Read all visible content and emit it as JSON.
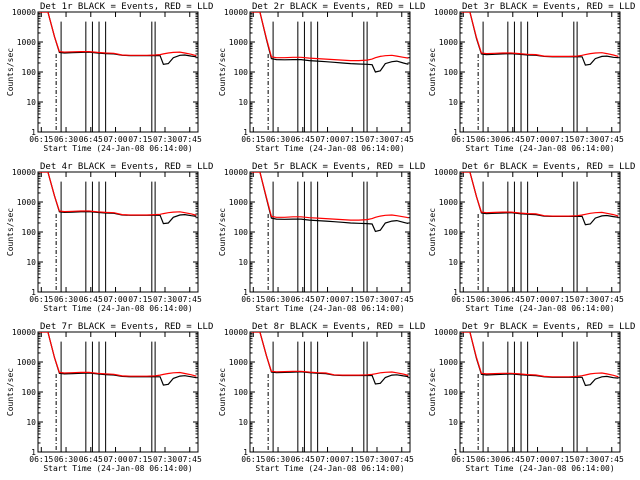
{
  "figure": {
    "series_legend": {
      "black": "BLACK = Events",
      "red": "RED = LLD"
    },
    "xlabel": "Start Time (24-Jan-08 06:14:00)",
    "ylabel": "Counts/sec",
    "xticks": [
      "06:15",
      "06:30",
      "06:45",
      "07:00",
      "07:15",
      "07:30",
      "07:45"
    ],
    "yticks": [
      "1",
      "10",
      "100",
      "1000",
      "10000"
    ],
    "colors": {
      "events": "#000000",
      "lld": "#ff0000",
      "axes": "#000000",
      "background": "#ffffff"
    }
  },
  "chart_data": [
    {
      "type": "line",
      "title": "Det 1r BLACK = Events, RED = LLD",
      "xlabel": "Start Time (24-Jan-08 06:14:00)",
      "ylabel": "Counts/sec",
      "xlim": [
        -1,
        96
      ],
      "ylim": [
        1,
        10000
      ],
      "yscale": "log",
      "x": [
        0,
        5,
        9,
        12,
        15,
        20,
        25,
        30,
        35,
        40,
        45,
        50,
        55,
        60,
        65,
        70,
        73,
        75,
        78,
        81,
        85,
        88,
        92,
        95
      ],
      "series": [
        {
          "name": "Events",
          "values": [
            10000,
            10000,
            1500,
            450,
            430,
            440,
            450,
            460,
            430,
            410,
            400,
            360,
            350,
            350,
            350,
            350,
            350,
            180,
            190,
            300,
            360,
            370,
            340,
            320
          ]
        },
        {
          "name": "LLD",
          "values": [
            10000,
            10000,
            1500,
            480,
            460,
            470,
            480,
            480,
            450,
            430,
            420,
            370,
            360,
            360,
            360,
            370,
            380,
            400,
            430,
            450,
            460,
            430,
            390,
            350
          ]
        }
      ],
      "vlines": [
        13,
        28,
        32,
        36,
        40,
        68,
        70
      ],
      "dashed_vline": 10
    },
    {
      "type": "line",
      "title": "Det 2r BLACK = Events, RED = LLD",
      "xlabel": "Start Time (24-Jan-08 06:14:00)",
      "ylabel": "Counts/sec",
      "xlim": [
        -1,
        96
      ],
      "ylim": [
        1,
        10000
      ],
      "yscale": "log",
      "x": [
        0,
        5,
        9,
        12,
        15,
        20,
        25,
        30,
        35,
        40,
        45,
        50,
        55,
        60,
        65,
        70,
        73,
        75,
        78,
        81,
        85,
        88,
        92,
        95
      ],
      "series": [
        {
          "name": "Events",
          "values": [
            10000,
            10000,
            1200,
            280,
            260,
            255,
            260,
            260,
            240,
            230,
            220,
            210,
            200,
            190,
            185,
            180,
            175,
            100,
            110,
            190,
            220,
            230,
            200,
            180
          ]
        },
        {
          "name": "LLD",
          "values": [
            10000,
            10000,
            1300,
            320,
            300,
            300,
            310,
            310,
            290,
            280,
            270,
            260,
            250,
            240,
            240,
            250,
            270,
            300,
            330,
            350,
            360,
            340,
            310,
            290
          ]
        }
      ],
      "vlines": [
        13,
        28,
        32,
        36,
        40,
        68,
        70
      ],
      "dashed_vline": 10
    },
    {
      "type": "line",
      "title": "Det 3r BLACK = Events, RED = LLD",
      "xlabel": "Start Time (24-Jan-08 06:14:00)",
      "ylabel": "Counts/sec",
      "xlim": [
        -1,
        96
      ],
      "ylim": [
        1,
        10000
      ],
      "yscale": "log",
      "x": [
        0,
        5,
        9,
        12,
        15,
        20,
        25,
        30,
        35,
        40,
        45,
        50,
        55,
        60,
        65,
        70,
        73,
        75,
        78,
        81,
        85,
        88,
        92,
        95
      ],
      "series": [
        {
          "name": "Events",
          "values": [
            10000,
            10000,
            1300,
            400,
            380,
            390,
            400,
            410,
            390,
            370,
            360,
            330,
            320,
            320,
            320,
            320,
            320,
            170,
            180,
            280,
            330,
            340,
            310,
            300
          ]
        },
        {
          "name": "LLD",
          "values": [
            10000,
            10000,
            1400,
            430,
            410,
            420,
            430,
            430,
            410,
            390,
            380,
            340,
            330,
            330,
            330,
            340,
            360,
            380,
            410,
            430,
            440,
            410,
            370,
            330
          ]
        }
      ],
      "vlines": [
        13,
        28,
        32,
        36,
        40,
        68,
        70
      ],
      "dashed_vline": 10
    },
    {
      "type": "line",
      "title": "Det 4r BLACK = Events, RED = LLD",
      "xlabel": "Start Time (24-Jan-08 06:14:00)",
      "ylabel": "Counts/sec",
      "xlim": [
        -1,
        96
      ],
      "ylim": [
        1,
        10000
      ],
      "yscale": "log",
      "x": [
        0,
        5,
        9,
        12,
        15,
        20,
        25,
        30,
        35,
        40,
        45,
        50,
        55,
        60,
        65,
        70,
        73,
        75,
        78,
        81,
        85,
        88,
        92,
        95
      ],
      "series": [
        {
          "name": "Events",
          "values": [
            10000,
            10000,
            1600,
            470,
            450,
            460,
            470,
            480,
            450,
            430,
            420,
            370,
            360,
            360,
            360,
            360,
            360,
            190,
            200,
            310,
            370,
            380,
            350,
            330
          ]
        },
        {
          "name": "LLD",
          "values": [
            10000,
            10000,
            1600,
            500,
            480,
            490,
            500,
            500,
            470,
            450,
            440,
            380,
            370,
            370,
            370,
            380,
            390,
            410,
            440,
            460,
            470,
            440,
            400,
            360
          ]
        }
      ],
      "vlines": [
        13,
        28,
        32,
        36,
        40,
        68,
        70
      ],
      "dashed_vline": 10
    },
    {
      "type": "line",
      "title": "Det 5r BLACK = Events, RED = LLD",
      "xlabel": "Start Time (24-Jan-08 06:14:00)",
      "ylabel": "Counts/sec",
      "xlim": [
        -1,
        96
      ],
      "ylim": [
        1,
        10000
      ],
      "yscale": "log",
      "x": [
        0,
        5,
        9,
        12,
        15,
        20,
        25,
        30,
        35,
        40,
        45,
        50,
        55,
        60,
        65,
        70,
        73,
        75,
        78,
        81,
        85,
        88,
        92,
        95
      ],
      "series": [
        {
          "name": "Events",
          "values": [
            10000,
            10000,
            1300,
            290,
            270,
            265,
            270,
            270,
            250,
            240,
            230,
            220,
            210,
            200,
            195,
            190,
            185,
            105,
            115,
            200,
            230,
            240,
            210,
            190
          ]
        },
        {
          "name": "LLD",
          "values": [
            10000,
            10000,
            1400,
            330,
            310,
            310,
            320,
            320,
            300,
            290,
            280,
            270,
            260,
            250,
            250,
            260,
            280,
            310,
            340,
            360,
            370,
            350,
            320,
            300
          ]
        }
      ],
      "vlines": [
        13,
        28,
        32,
        36,
        40,
        68,
        70
      ],
      "dashed_vline": 10
    },
    {
      "type": "line",
      "title": "Det 6r BLACK = Events, RED = LLD",
      "xlabel": "Start Time (24-Jan-08 06:14:00)",
      "ylabel": "Counts/sec",
      "xlim": [
        -1,
        96
      ],
      "ylim": [
        1,
        10000
      ],
      "yscale": "log",
      "x": [
        0,
        5,
        9,
        12,
        15,
        20,
        25,
        30,
        35,
        40,
        45,
        50,
        55,
        60,
        65,
        70,
        73,
        75,
        78,
        81,
        85,
        88,
        92,
        95
      ],
      "series": [
        {
          "name": "Events",
          "values": [
            10000,
            10000,
            1500,
            430,
            410,
            420,
            430,
            440,
            410,
            390,
            380,
            340,
            330,
            330,
            330,
            330,
            330,
            175,
            185,
            290,
            345,
            355,
            325,
            310
          ]
        },
        {
          "name": "LLD",
          "values": [
            10000,
            10000,
            1500,
            460,
            440,
            450,
            460,
            460,
            430,
            410,
            400,
            350,
            340,
            340,
            340,
            350,
            370,
            390,
            420,
            440,
            450,
            420,
            380,
            340
          ]
        }
      ],
      "vlines": [
        13,
        28,
        32,
        36,
        40,
        68,
        70
      ],
      "dashed_vline": 10
    },
    {
      "type": "line",
      "title": "Det 7r BLACK = Events, RED = LLD",
      "xlabel": "Start Time (24-Jan-08 06:14:00)",
      "ylabel": "Counts/sec",
      "xlim": [
        -1,
        96
      ],
      "ylim": [
        1,
        10000
      ],
      "yscale": "log",
      "x": [
        0,
        5,
        9,
        12,
        15,
        20,
        25,
        30,
        35,
        40,
        45,
        50,
        55,
        60,
        65,
        70,
        73,
        75,
        78,
        81,
        85,
        88,
        92,
        95
      ],
      "series": [
        {
          "name": "Events",
          "values": [
            10000,
            10000,
            1400,
            420,
            400,
            410,
            420,
            430,
            400,
            380,
            370,
            330,
            320,
            320,
            320,
            320,
            320,
            170,
            180,
            285,
            340,
            350,
            320,
            300
          ]
        },
        {
          "name": "LLD",
          "values": [
            10000,
            10000,
            1400,
            450,
            430,
            440,
            450,
            450,
            420,
            400,
            390,
            345,
            335,
            335,
            335,
            345,
            365,
            385,
            415,
            435,
            445,
            415,
            375,
            335
          ]
        }
      ],
      "vlines": [
        13,
        28,
        32,
        36,
        40,
        68,
        70
      ],
      "dashed_vline": 10
    },
    {
      "type": "line",
      "title": "Det 8r BLACK = Events, RED = LLD",
      "xlabel": "Start Time (24-Jan-08 06:14:00)",
      "ylabel": "Counts/sec",
      "xlim": [
        -1,
        96
      ],
      "ylim": [
        1,
        10000
      ],
      "yscale": "log",
      "x": [
        0,
        5,
        9,
        12,
        15,
        20,
        25,
        30,
        35,
        40,
        45,
        50,
        55,
        60,
        65,
        70,
        73,
        75,
        78,
        81,
        85,
        88,
        92,
        95
      ],
      "series": [
        {
          "name": "Events",
          "values": [
            10000,
            10000,
            1600,
            460,
            440,
            450,
            460,
            470,
            440,
            420,
            410,
            365,
            355,
            355,
            355,
            355,
            355,
            185,
            195,
            305,
            365,
            375,
            345,
            325
          ]
        },
        {
          "name": "LLD",
          "values": [
            10000,
            10000,
            1600,
            490,
            470,
            480,
            490,
            490,
            460,
            440,
            430,
            375,
            365,
            365,
            365,
            375,
            385,
            405,
            435,
            455,
            465,
            435,
            395,
            355
          ]
        }
      ],
      "vlines": [
        13,
        28,
        32,
        36,
        40,
        68,
        70
      ],
      "dashed_vline": 10
    },
    {
      "type": "line",
      "title": "Det 9r BLACK = Events, RED = LLD",
      "xlabel": "Start Time (24-Jan-08 06:14:00)",
      "ylabel": "Counts/sec",
      "xlim": [
        -1,
        96
      ],
      "ylim": [
        1,
        10000
      ],
      "yscale": "log",
      "x": [
        0,
        5,
        9,
        12,
        15,
        20,
        25,
        30,
        35,
        40,
        45,
        50,
        55,
        60,
        65,
        70,
        73,
        75,
        78,
        81,
        85,
        88,
        92,
        95
      ],
      "series": [
        {
          "name": "Events",
          "values": [
            10000,
            10000,
            1300,
            390,
            370,
            380,
            390,
            400,
            380,
            360,
            350,
            320,
            310,
            310,
            310,
            310,
            310,
            165,
            175,
            270,
            320,
            330,
            300,
            290
          ]
        },
        {
          "name": "LLD",
          "values": [
            10000,
            10000,
            1400,
            420,
            400,
            410,
            420,
            420,
            400,
            380,
            370,
            330,
            320,
            320,
            320,
            330,
            350,
            370,
            400,
            420,
            430,
            400,
            360,
            320
          ]
        }
      ],
      "vlines": [
        13,
        28,
        32,
        36,
        40,
        68,
        70
      ],
      "dashed_vline": 10
    }
  ]
}
